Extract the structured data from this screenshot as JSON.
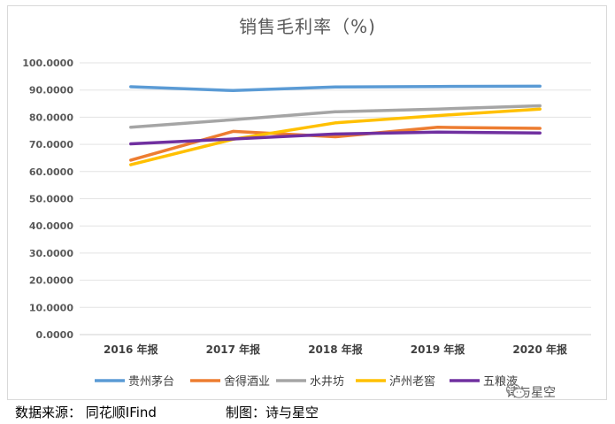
{
  "chart_data": {
    "type": "line",
    "title": "销售毛利率（%)",
    "categories": [
      "2016 年报",
      "2017 年报",
      "2018 年报",
      "2019 年报",
      "2020 年报"
    ],
    "ylim": [
      0,
      100
    ],
    "yticks": [
      "0.0000",
      "10.0000",
      "20.0000",
      "30.0000",
      "40.0000",
      "50.0000",
      "60.0000",
      "70.0000",
      "80.0000",
      "90.0000",
      "100.0000"
    ],
    "grid": true,
    "legend_position": "bottom",
    "series": [
      {
        "name": "贵州茅台",
        "color": "#5B9BD5",
        "values": [
          91.2,
          89.8,
          91.1,
          91.3,
          91.4
        ]
      },
      {
        "name": "舍得酒业",
        "color": "#ED7D31",
        "values": [
          64.2,
          74.8,
          72.8,
          76.3,
          75.9
        ]
      },
      {
        "name": "水井坊",
        "color": "#A5A5A5",
        "values": [
          76.3,
          79.1,
          82.0,
          83.0,
          84.2
        ]
      },
      {
        "name": "泸州老窖",
        "color": "#FFC000",
        "values": [
          62.5,
          71.9,
          77.9,
          80.6,
          83.0
        ]
      },
      {
        "name": "五粮液",
        "color": "#7030A0",
        "values": [
          70.2,
          72.0,
          73.8,
          74.5,
          74.2
        ]
      }
    ]
  },
  "footer": {
    "source": "数据来源： 同花顺IFind",
    "maker": "制图：诗与星空"
  },
  "watermark": {
    "text": "诗与星空",
    "icon": "wechat-icon"
  }
}
